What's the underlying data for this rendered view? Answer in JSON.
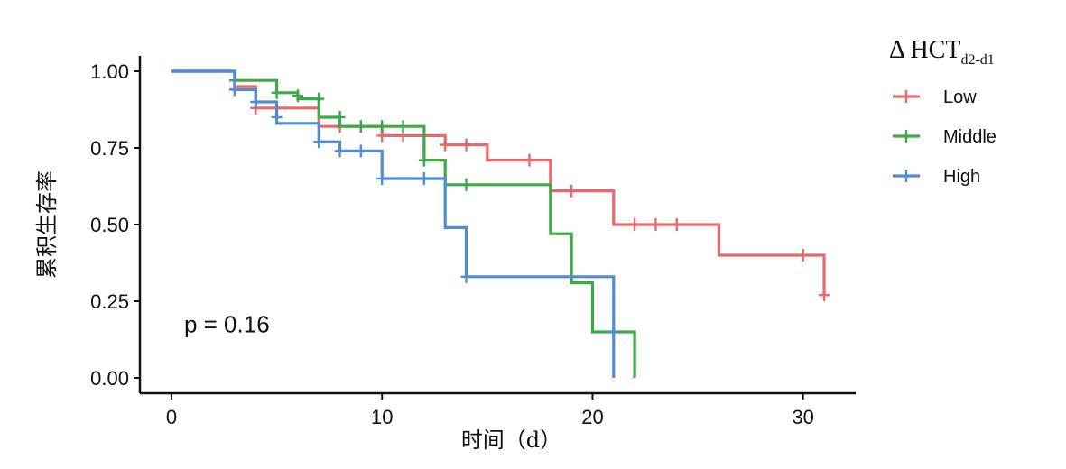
{
  "chart_data": {
    "type": "line",
    "title": "",
    "xlabel": "时间（d）",
    "ylabel": "累积生存率",
    "xlim": [
      -1.5,
      32.5
    ],
    "ylim": [
      -0.05,
      1.05
    ],
    "x_ticks": [
      0,
      10,
      20,
      30
    ],
    "x_tick_labels": [
      "0",
      "10",
      "20",
      "30"
    ],
    "y_ticks": [
      0,
      0.25,
      0.5,
      0.75,
      1.0
    ],
    "y_tick_labels": [
      "0.00",
      "0.25",
      "0.50",
      "0.75",
      "1.00"
    ],
    "grid": false,
    "legend": {
      "title_main": "Δ HCT",
      "title_sub": "d2-d1",
      "placement": "right"
    },
    "annotation": "p = 0.16",
    "series": [
      {
        "name": "Low",
        "color": "#E8696B",
        "steps": [
          [
            0,
            1.0
          ],
          [
            3,
            0.95
          ],
          [
            4,
            0.88
          ],
          [
            7,
            0.82
          ],
          [
            10,
            0.79
          ],
          [
            13,
            0.76
          ],
          [
            15,
            0.71
          ],
          [
            18,
            0.61
          ],
          [
            21,
            0.5
          ],
          [
            26,
            0.4
          ],
          [
            31,
            0.27
          ]
        ],
        "end_x": 31,
        "censors": [
          [
            3,
            0.94
          ],
          [
            4,
            0.88
          ],
          [
            8,
            0.82
          ],
          [
            9,
            0.82
          ],
          [
            10,
            0.79
          ],
          [
            11,
            0.79
          ],
          [
            13,
            0.76
          ],
          [
            14,
            0.76
          ],
          [
            17,
            0.71
          ],
          [
            19,
            0.61
          ],
          [
            22,
            0.5
          ],
          [
            23,
            0.5
          ],
          [
            24,
            0.5
          ],
          [
            30,
            0.4
          ],
          [
            31,
            0.27
          ]
        ]
      },
      {
        "name": "Middle",
        "color": "#3DAA47",
        "steps": [
          [
            0,
            1.0
          ],
          [
            3,
            0.97
          ],
          [
            5,
            0.93
          ],
          [
            6,
            0.91
          ],
          [
            7,
            0.85
          ],
          [
            8,
            0.82
          ],
          [
            12,
            0.71
          ],
          [
            13,
            0.63
          ],
          [
            18,
            0.47
          ],
          [
            19,
            0.31
          ],
          [
            20,
            0.15
          ],
          [
            22,
            0.0
          ]
        ],
        "end_x": 22,
        "censors": [
          [
            3,
            0.97
          ],
          [
            5,
            0.93
          ],
          [
            6,
            0.92
          ],
          [
            7,
            0.91
          ],
          [
            8,
            0.85
          ],
          [
            9,
            0.82
          ],
          [
            10,
            0.82
          ],
          [
            11,
            0.82
          ],
          [
            12,
            0.71
          ],
          [
            14,
            0.63
          ]
        ]
      },
      {
        "name": "High",
        "color": "#4E8DD3",
        "steps": [
          [
            0,
            1.0
          ],
          [
            3,
            0.94
          ],
          [
            4,
            0.9
          ],
          [
            5,
            0.83
          ],
          [
            7,
            0.77
          ],
          [
            8,
            0.74
          ],
          [
            10,
            0.65
          ],
          [
            13,
            0.49
          ],
          [
            14,
            0.33
          ],
          [
            21,
            0.0
          ]
        ],
        "end_x": 21,
        "censors": [
          [
            3,
            0.94
          ],
          [
            4,
            0.9
          ],
          [
            5,
            0.85
          ],
          [
            7,
            0.77
          ],
          [
            8,
            0.74
          ],
          [
            9,
            0.74
          ],
          [
            10,
            0.65
          ],
          [
            12,
            0.65
          ],
          [
            14,
            0.33
          ],
          [
            21,
            0.15
          ]
        ]
      }
    ]
  }
}
